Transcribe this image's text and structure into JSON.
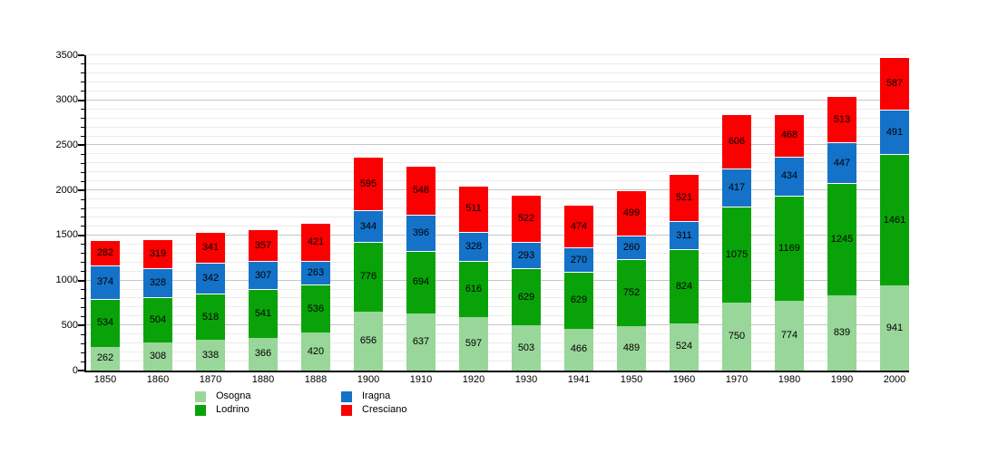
{
  "chart_data": {
    "type": "bar",
    "stacked": true,
    "title": "",
    "xlabel": "",
    "ylabel": "",
    "grid": true,
    "legend_position": "bottom-left",
    "ylim": [
      0,
      3500
    ],
    "ytick_step": 500,
    "yminor_step": 100,
    "categories": [
      "1850",
      "1860",
      "1870",
      "1880",
      "1888",
      "1900",
      "1910",
      "1920",
      "1930",
      "1941",
      "1950",
      "1960",
      "1970",
      "1980",
      "1990",
      "2000"
    ],
    "series": [
      {
        "name": "Osogna",
        "color": "#99d699",
        "values": [
          262,
          308,
          338,
          366,
          420,
          656,
          637,
          597,
          503,
          466,
          489,
          524,
          750,
          774,
          839,
          941
        ]
      },
      {
        "name": "Lodrino",
        "color": "#09a309",
        "values": [
          534,
          504,
          518,
          541,
          536,
          776,
          694,
          616,
          629,
          629,
          752,
          824,
          1075,
          1169,
          1245,
          1461
        ]
      },
      {
        "name": "Iragna",
        "color": "#1472c8",
        "values": [
          374,
          328,
          342,
          307,
          263,
          344,
          396,
          328,
          293,
          270,
          260,
          311,
          417,
          434,
          447,
          491
        ]
      },
      {
        "name": "Cresciano",
        "color": "#fa0000",
        "values": [
          282,
          319,
          341,
          357,
          421,
          595,
          548,
          511,
          522,
          474,
          499,
          521,
          606,
          468,
          513,
          587
        ]
      }
    ]
  }
}
